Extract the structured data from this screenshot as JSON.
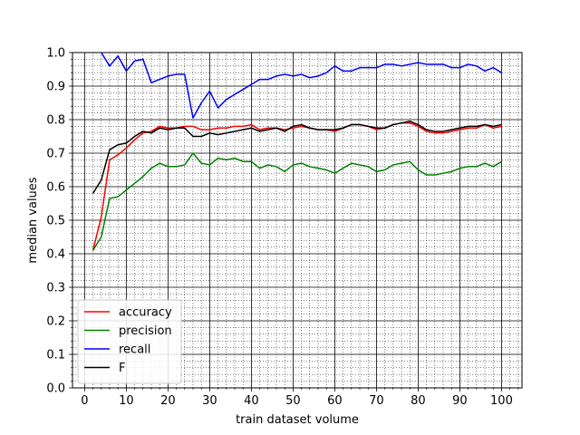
{
  "chart_data": {
    "type": "line",
    "xlabel": "train dataset volume",
    "ylabel": "median values",
    "xlim": [
      -2.9,
      104.9
    ],
    "ylim": [
      0.0,
      1.0
    ],
    "xticks": [
      0,
      10,
      20,
      30,
      40,
      50,
      60,
      70,
      80,
      90,
      100
    ],
    "yticks": [
      0.0,
      0.1,
      0.2,
      0.3,
      0.4,
      0.5,
      0.6,
      0.7,
      0.8,
      0.9,
      1.0
    ],
    "ytick_labels": [
      "0.0",
      "0.1",
      "0.2",
      "0.3",
      "0.4",
      "0.5",
      "0.6",
      "0.7",
      "0.8",
      "0.9",
      "1.0"
    ],
    "grid": {
      "major": true,
      "minor": true
    },
    "legend": {
      "location": "lower-left"
    },
    "x": [
      2,
      4,
      6,
      8,
      10,
      12,
      14,
      16,
      18,
      20,
      22,
      24,
      26,
      28,
      30,
      32,
      34,
      36,
      38,
      40,
      42,
      44,
      46,
      48,
      50,
      52,
      54,
      56,
      58,
      60,
      62,
      64,
      66,
      68,
      70,
      72,
      74,
      76,
      78,
      80,
      82,
      84,
      86,
      88,
      90,
      92,
      94,
      96,
      98,
      100
    ],
    "series": [
      {
        "name": "accuracy",
        "color": "#ff0000",
        "values": [
          0.41,
          0.51,
          0.68,
          0.695,
          0.715,
          0.74,
          0.76,
          0.765,
          0.78,
          0.775,
          0.775,
          0.78,
          0.78,
          0.77,
          0.77,
          0.775,
          0.775,
          0.78,
          0.78,
          0.785,
          0.77,
          0.775,
          0.775,
          0.77,
          0.775,
          0.78,
          0.775,
          0.77,
          0.77,
          0.765,
          0.775,
          0.785,
          0.785,
          0.78,
          0.77,
          0.775,
          0.785,
          0.79,
          0.79,
          0.78,
          0.765,
          0.76,
          0.76,
          0.765,
          0.77,
          0.775,
          0.775,
          0.785,
          0.775,
          0.78
        ]
      },
      {
        "name": "precision",
        "color": "#008000",
        "values": [
          0.41,
          0.45,
          0.565,
          0.57,
          0.59,
          0.61,
          0.63,
          0.655,
          0.67,
          0.66,
          0.66,
          0.665,
          0.7,
          0.67,
          0.665,
          0.685,
          0.68,
          0.685,
          0.675,
          0.675,
          0.655,
          0.665,
          0.66,
          0.645,
          0.665,
          0.67,
          0.66,
          0.655,
          0.65,
          0.64,
          0.655,
          0.67,
          0.665,
          0.66,
          0.645,
          0.65,
          0.665,
          0.67,
          0.675,
          0.65,
          0.635,
          0.635,
          0.64,
          0.645,
          0.655,
          0.66,
          0.66,
          0.67,
          0.66,
          0.675
        ]
      },
      {
        "name": "recall",
        "color": "#0000ff",
        "values": [
          1.03,
          1.0,
          0.96,
          0.99,
          0.945,
          0.975,
          0.98,
          0.91,
          0.92,
          0.93,
          0.935,
          0.935,
          0.805,
          0.85,
          0.885,
          0.835,
          0.86,
          0.875,
          0.89,
          0.905,
          0.92,
          0.92,
          0.93,
          0.935,
          0.93,
          0.935,
          0.925,
          0.93,
          0.94,
          0.96,
          0.945,
          0.945,
          0.955,
          0.955,
          0.955,
          0.965,
          0.965,
          0.96,
          0.965,
          0.97,
          0.965,
          0.965,
          0.965,
          0.955,
          0.955,
          0.965,
          0.96,
          0.945,
          0.955,
          0.94
        ]
      },
      {
        "name": "F",
        "color": "#000000",
        "values": [
          0.58,
          0.62,
          0.71,
          0.725,
          0.73,
          0.75,
          0.765,
          0.76,
          0.775,
          0.77,
          0.775,
          0.775,
          0.75,
          0.75,
          0.76,
          0.755,
          0.76,
          0.765,
          0.77,
          0.775,
          0.765,
          0.77,
          0.775,
          0.765,
          0.78,
          0.785,
          0.775,
          0.77,
          0.77,
          0.77,
          0.775,
          0.785,
          0.785,
          0.78,
          0.775,
          0.775,
          0.785,
          0.79,
          0.795,
          0.785,
          0.77,
          0.765,
          0.765,
          0.77,
          0.775,
          0.78,
          0.78,
          0.785,
          0.78,
          0.785
        ]
      }
    ]
  }
}
